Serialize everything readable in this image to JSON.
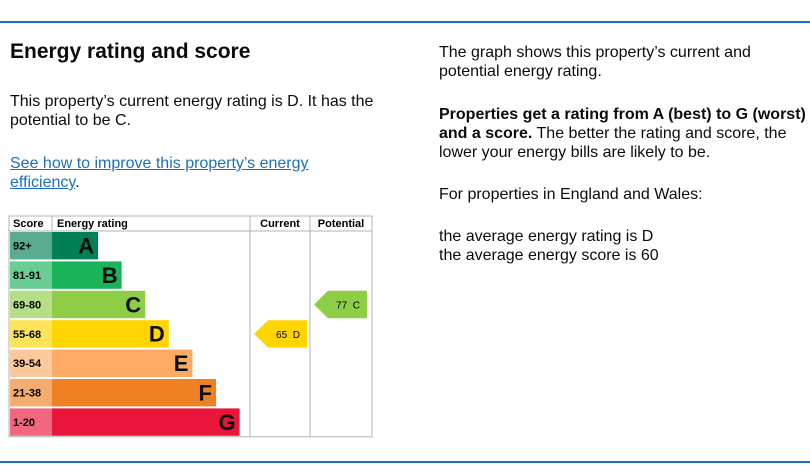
{
  "heading": "Energy rating and score",
  "intro": "This property’s current energy rating is D. It has the potential to be C.",
  "link": {
    "text": "See how to improve this property’s energy efficiency",
    "suffix": "."
  },
  "epc": {
    "headers": [
      "Score",
      "Energy rating",
      "Current",
      "Potential"
    ],
    "bands": [
      {
        "score": "92+",
        "letter": "A",
        "color": "#008054"
      },
      {
        "score": "81-91",
        "letter": "B",
        "color": "#19b459"
      },
      {
        "score": "69-80",
        "letter": "C",
        "color": "#8dce46"
      },
      {
        "score": "55-68",
        "letter": "D",
        "color": "#ffd500"
      },
      {
        "score": "39-54",
        "letter": "E",
        "color": "#fcaa65"
      },
      {
        "score": "21-38",
        "letter": "F",
        "color": "#ef8023"
      },
      {
        "score": "1-20",
        "letter": "G",
        "color": "#e9153b"
      }
    ],
    "current": {
      "score": "65",
      "rating": "D"
    },
    "potential": {
      "score": "77",
      "rating": "C"
    }
  },
  "side": {
    "graph_note": "The graph shows this property’s current and potential energy rating.",
    "rating_bold": "Properties get a rating from A (best) to G (worst) and a score.",
    "rating_rest": " The better the rating and score, the lower your energy bills are likely to be.",
    "region": "For properties in England and Wales:",
    "avg_rating": "the average energy rating is D",
    "avg_score": "the average energy score is 60"
  }
}
